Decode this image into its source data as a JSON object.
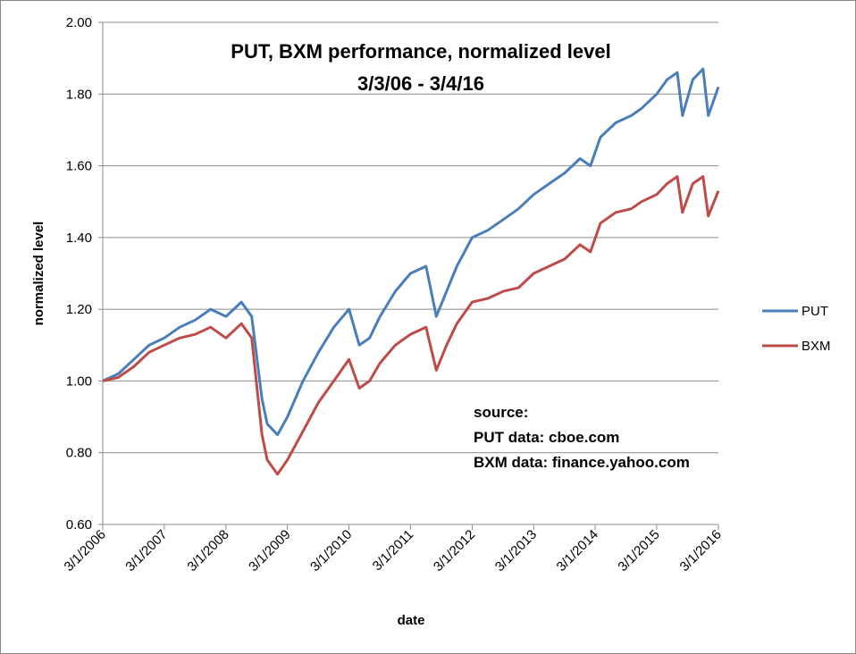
{
  "colors": {
    "put": "#4a7ebb",
    "bxm": "#be4b48",
    "grid": "#8c8c8c",
    "axis": "#8c8c8c"
  },
  "chart_data": {
    "type": "line",
    "title": "PUT, BXM performance, normalized level",
    "subtitle": "3/3/06 - 3/4/16",
    "xlabel": "date",
    "ylabel": "normalized level",
    "ylim": [
      0.6,
      2.0
    ],
    "y_ticks": [
      "0.60",
      "0.80",
      "1.00",
      "1.20",
      "1.40",
      "1.60",
      "1.80",
      "2.00"
    ],
    "x_ticks": [
      "3/1/2006",
      "3/1/2007",
      "3/1/2008",
      "3/1/2009",
      "3/1/2010",
      "3/1/2011",
      "3/1/2012",
      "3/1/2013",
      "3/1/2014",
      "3/1/2015",
      "3/1/2016"
    ],
    "x_range": [
      "3/1/2006",
      "3/1/2016"
    ],
    "grid": "horizontal",
    "legend_position": "right",
    "annotation": [
      "source:",
      "PUT data: cboe.com",
      "BXM data:  finance.yahoo.com"
    ],
    "series": [
      {
        "name": "PUT",
        "x": [
          "2006-03",
          "2006-06",
          "2006-09",
          "2006-12",
          "2007-03",
          "2007-06",
          "2007-09",
          "2007-12",
          "2008-03",
          "2008-06",
          "2008-08",
          "2008-10",
          "2008-11",
          "2009-01",
          "2009-03",
          "2009-06",
          "2009-09",
          "2009-12",
          "2010-03",
          "2010-05",
          "2010-07",
          "2010-09",
          "2010-12",
          "2011-03",
          "2011-06",
          "2011-08",
          "2011-10",
          "2011-12",
          "2012-03",
          "2012-06",
          "2012-09",
          "2012-12",
          "2013-03",
          "2013-06",
          "2013-09",
          "2013-12",
          "2014-02",
          "2014-04",
          "2014-07",
          "2014-10",
          "2014-12",
          "2015-03",
          "2015-05",
          "2015-07",
          "2015-08",
          "2015-10",
          "2015-12",
          "2016-01",
          "2016-03"
        ],
        "values": [
          1.0,
          1.02,
          1.06,
          1.1,
          1.12,
          1.15,
          1.17,
          1.2,
          1.18,
          1.22,
          1.18,
          0.95,
          0.88,
          0.85,
          0.9,
          1.0,
          1.08,
          1.15,
          1.2,
          1.1,
          1.12,
          1.18,
          1.25,
          1.3,
          1.32,
          1.18,
          1.25,
          1.32,
          1.4,
          1.42,
          1.45,
          1.48,
          1.52,
          1.55,
          1.58,
          1.62,
          1.6,
          1.68,
          1.72,
          1.74,
          1.76,
          1.8,
          1.84,
          1.86,
          1.74,
          1.84,
          1.87,
          1.74,
          1.82
        ]
      },
      {
        "name": "BXM",
        "x": [
          "2006-03",
          "2006-06",
          "2006-09",
          "2006-12",
          "2007-03",
          "2007-06",
          "2007-09",
          "2007-12",
          "2008-03",
          "2008-06",
          "2008-08",
          "2008-10",
          "2008-11",
          "2009-01",
          "2009-03",
          "2009-06",
          "2009-09",
          "2009-12",
          "2010-03",
          "2010-05",
          "2010-07",
          "2010-09",
          "2010-12",
          "2011-03",
          "2011-06",
          "2011-08",
          "2011-10",
          "2011-12",
          "2012-03",
          "2012-06",
          "2012-09",
          "2012-12",
          "2013-03",
          "2013-06",
          "2013-09",
          "2013-12",
          "2014-02",
          "2014-04",
          "2014-07",
          "2014-10",
          "2014-12",
          "2015-03",
          "2015-05",
          "2015-07",
          "2015-08",
          "2015-10",
          "2015-12",
          "2016-01",
          "2016-03"
        ],
        "values": [
          1.0,
          1.01,
          1.04,
          1.08,
          1.1,
          1.12,
          1.13,
          1.15,
          1.12,
          1.16,
          1.12,
          0.85,
          0.78,
          0.74,
          0.78,
          0.86,
          0.94,
          1.0,
          1.06,
          0.98,
          1.0,
          1.05,
          1.1,
          1.13,
          1.15,
          1.03,
          1.1,
          1.16,
          1.22,
          1.23,
          1.25,
          1.26,
          1.3,
          1.32,
          1.34,
          1.38,
          1.36,
          1.44,
          1.47,
          1.48,
          1.5,
          1.52,
          1.55,
          1.57,
          1.47,
          1.55,
          1.57,
          1.46,
          1.53
        ]
      }
    ]
  }
}
